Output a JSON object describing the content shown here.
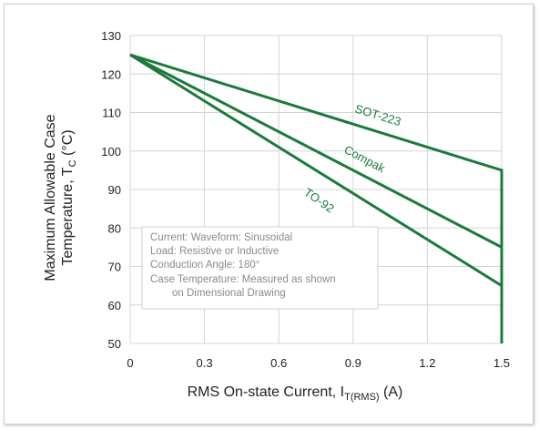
{
  "chart_data": {
    "type": "line",
    "xlabel": "RMS On-state Current, I",
    "xlabel_sub": "T(RMS)",
    "xlabel_unit": " (A)",
    "ylabel_line1": "Maximum Allowable Case",
    "ylabel_line2": "Temperature, T",
    "ylabel_sub": "C",
    "ylabel_unit": " (°C)",
    "xlim": [
      0,
      1.5
    ],
    "ylim": [
      50,
      130
    ],
    "x_ticks": [
      0,
      0.3,
      0.6,
      0.9,
      1.2,
      1.5
    ],
    "x_tick_labels": [
      "0",
      "0.3",
      "0.6",
      "0.9",
      "1.2",
      "1.5"
    ],
    "y_ticks": [
      50,
      60,
      70,
      80,
      90,
      100,
      110,
      120,
      130
    ],
    "y_tick_labels": [
      "50",
      "60",
      "70",
      "80",
      "90",
      "100",
      "110",
      "120",
      "130"
    ],
    "grid": true,
    "line_color": "#1a7a3a",
    "series": [
      {
        "name": "SOT-223",
        "x": [
          0,
          1.5,
          1.5
        ],
        "y": [
          125,
          95,
          50
        ]
      },
      {
        "name": "Compak",
        "x": [
          0,
          1.5
        ],
        "y": [
          125,
          75
        ]
      },
      {
        "name": "TO-92",
        "x": [
          0,
          1.5
        ],
        "y": [
          125,
          65
        ]
      }
    ],
    "annotation_lines": [
      "Current: Waveform: Sinusoidal",
      "Load: Resistive or Inductive",
      "Conduction Angle: 180°",
      "Case Temperature: Measured as shown",
      "on Dimensional Drawing"
    ]
  }
}
